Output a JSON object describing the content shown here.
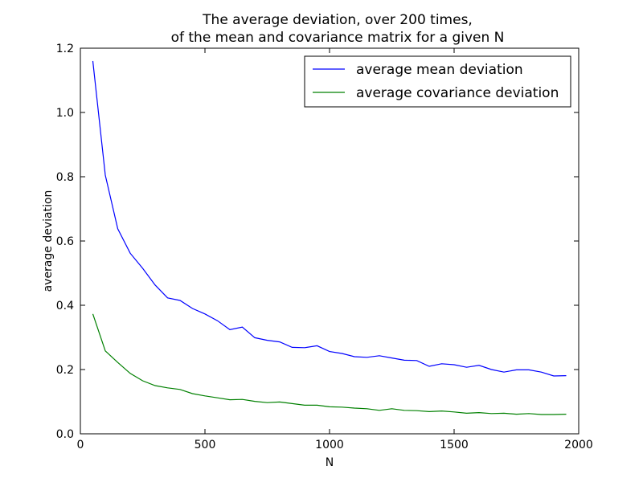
{
  "chart_data": {
    "type": "line",
    "title_line1": "The average deviation, over 200 times,",
    "title_line2": "of the mean and covariance matrix for a given N",
    "xlabel": "N",
    "ylabel": "average deviation",
    "xlim": [
      0,
      2000
    ],
    "ylim": [
      0.0,
      1.2
    ],
    "xticks": [
      0,
      500,
      1000,
      1500,
      2000
    ],
    "xtick_labels": [
      "0",
      "500",
      "1000",
      "1500",
      "2000"
    ],
    "yticks": [
      0.0,
      0.2,
      0.4,
      0.6,
      0.8,
      1.0,
      1.2
    ],
    "ytick_labels": [
      "0.0",
      "0.2",
      "0.4",
      "0.6",
      "0.8",
      "1.0",
      "1.2"
    ],
    "grid": false,
    "legend_position": "top-right",
    "x": [
      50,
      100,
      150,
      200,
      250,
      300,
      350,
      400,
      450,
      500,
      550,
      600,
      650,
      700,
      750,
      800,
      850,
      900,
      950,
      1000,
      1050,
      1100,
      1150,
      1200,
      1250,
      1300,
      1350,
      1400,
      1450,
      1500,
      1550,
      1600,
      1650,
      1700,
      1750,
      1800,
      1850,
      1900,
      1950
    ],
    "series": [
      {
        "name": "average mean deviation",
        "color": "#0000ff",
        "values": [
          1.16,
          0.805,
          0.638,
          0.562,
          0.515,
          0.463,
          0.423,
          0.415,
          0.39,
          0.373,
          0.352,
          0.324,
          0.332,
          0.299,
          0.291,
          0.286,
          0.269,
          0.268,
          0.274,
          0.256,
          0.25,
          0.24,
          0.238,
          0.243,
          0.236,
          0.229,
          0.228,
          0.21,
          0.218,
          0.215,
          0.207,
          0.213,
          0.2,
          0.192,
          0.199,
          0.199,
          0.192,
          0.18,
          0.181
        ]
      },
      {
        "name": "average covariance deviation",
        "color": "#008000",
        "values": [
          0.373,
          0.258,
          0.222,
          0.188,
          0.165,
          0.15,
          0.143,
          0.138,
          0.125,
          0.118,
          0.112,
          0.106,
          0.107,
          0.101,
          0.097,
          0.099,
          0.094,
          0.089,
          0.089,
          0.084,
          0.083,
          0.08,
          0.078,
          0.073,
          0.078,
          0.073,
          0.072,
          0.069,
          0.071,
          0.068,
          0.064,
          0.066,
          0.063,
          0.064,
          0.061,
          0.063,
          0.06,
          0.06,
          0.061
        ]
      }
    ]
  }
}
